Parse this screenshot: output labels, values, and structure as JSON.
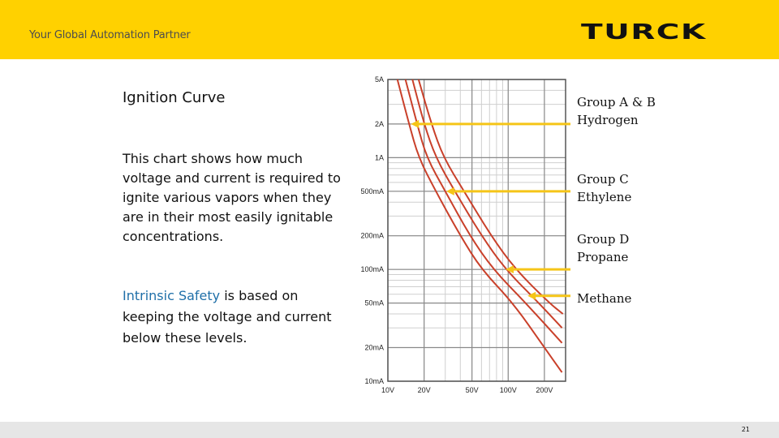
{
  "header": {
    "tagline": "Your Global Automation Partner",
    "logo_text": "TURCK",
    "background_color": "#FFD100"
  },
  "left_panel": {
    "title": "Ignition Curve",
    "paragraph1": "This chart shows how much voltage and current is required to ignite various vapors when they are in their most easily ignitable concentrations.",
    "paragraph2_highlight": "Intrinsic Safety",
    "paragraph2_rest": " is based on keeping the voltage and current below these levels.",
    "highlight_color": "#1f6fa8"
  },
  "chart_data": {
    "type": "line",
    "title": "Ignition Curve",
    "xscale": "log",
    "yscale": "log",
    "x_tick_labels": [
      "10V",
      "20V",
      "50V",
      "100V",
      "200V"
    ],
    "x_ticks": [
      10,
      20,
      50,
      100,
      200
    ],
    "y_tick_labels": [
      "5A",
      "2A",
      "1A",
      "500mA",
      "200mA",
      "100mA",
      "50mA",
      "20mA",
      "10mA"
    ],
    "y_ticks": [
      5,
      2,
      1,
      0.5,
      0.2,
      0.1,
      0.05,
      0.02,
      0.01
    ],
    "xlim": [
      10,
      300
    ],
    "ylim": [
      0.01,
      5
    ],
    "curve_color": "#c9402a",
    "arrow_color": "#F5C518",
    "series": [
      {
        "name": "Group A & B Hydrogen",
        "label_line1": "Group A & B",
        "label_line2": "Hydrogen",
        "points": [
          [
            12,
            5
          ],
          [
            15,
            2
          ],
          [
            18,
            1
          ],
          [
            25,
            0.5
          ],
          [
            40,
            0.2
          ],
          [
            60,
            0.1
          ],
          [
            110,
            0.05
          ],
          [
            200,
            0.02
          ],
          [
            280,
            0.012
          ]
        ]
      },
      {
        "name": "Group C Ethylene",
        "label_line1": "Group C",
        "label_line2": "Ethylene",
        "points": [
          [
            14,
            5
          ],
          [
            17.5,
            2
          ],
          [
            21,
            1
          ],
          [
            30,
            0.5
          ],
          [
            48,
            0.2
          ],
          [
            75,
            0.1
          ],
          [
            140,
            0.05
          ],
          [
            280,
            0.022
          ]
        ]
      },
      {
        "name": "Group D Propane",
        "label_line1": "Group D",
        "label_line2": "Propane",
        "points": [
          [
            16,
            5
          ],
          [
            20,
            2
          ],
          [
            25,
            1
          ],
          [
            36,
            0.5
          ],
          [
            60,
            0.2
          ],
          [
            95,
            0.1
          ],
          [
            180,
            0.05
          ],
          [
            280,
            0.03
          ]
        ]
      },
      {
        "name": "Methane",
        "label_line1": "Methane",
        "label_line2": "",
        "points": [
          [
            18,
            5
          ],
          [
            23,
            2
          ],
          [
            29,
            1
          ],
          [
            43,
            0.5
          ],
          [
            72,
            0.2
          ],
          [
            115,
            0.1
          ],
          [
            220,
            0.05
          ],
          [
            285,
            0.04
          ]
        ]
      }
    ]
  },
  "footer": {
    "page_number": "21",
    "background_color": "#e6e6e6"
  }
}
